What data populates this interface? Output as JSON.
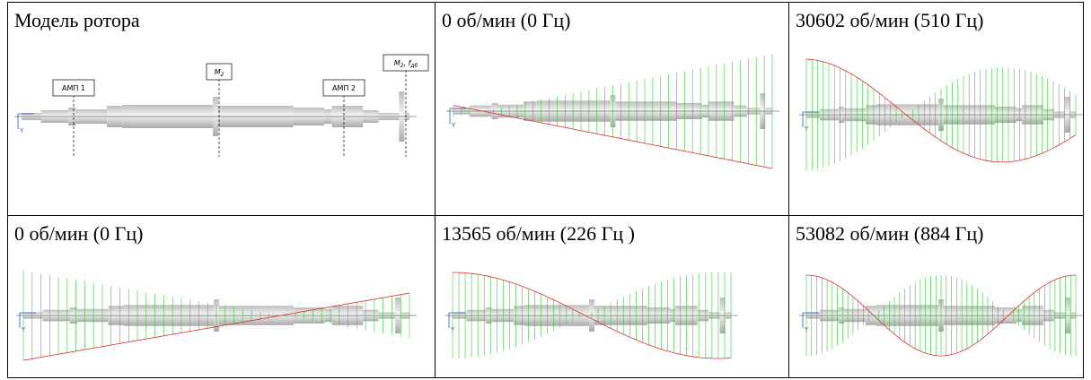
{
  "table": {
    "rows": [
      [
        "Модель ротора",
        "0 об/мин (0 Гц)",
        "30602 об/мин (510 Гц)"
      ],
      [
        "0 об/мин (0 Гц)",
        "13565 об/мин  (226 Гц )",
        "53082 об/мин  (884 Гц)"
      ]
    ]
  },
  "model": {
    "bearing_labels": [
      "АМП 1",
      "АМП 2"
    ],
    "mass_labels": [
      {
        "symbol": "M",
        "sub": "2"
      },
      {
        "symbol": "M",
        "sub": "2",
        "extra": ", ",
        "symbol2": "f",
        "sub2": "дб"
      }
    ]
  },
  "axis_label": "Y"
}
